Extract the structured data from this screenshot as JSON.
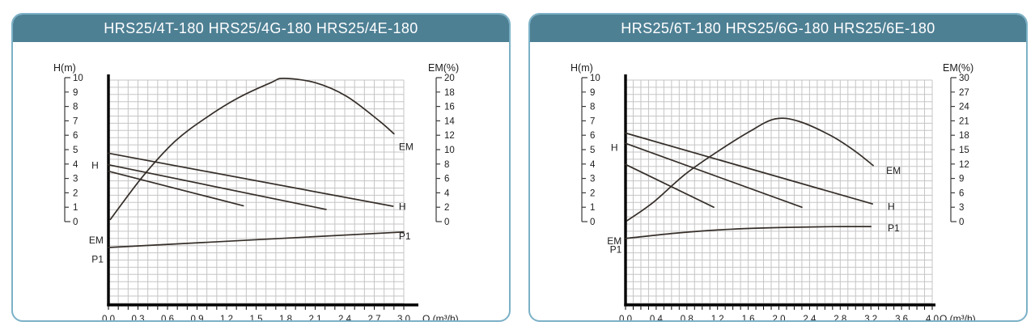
{
  "colors": {
    "header_bg": "#4e8094",
    "panel_border": "#7cb1c7",
    "title_text": "#ffffff",
    "grid": "#c5c5c5",
    "axis": "#000000",
    "curve": "#352e29",
    "scale": "#3a3a3a",
    "tick_text": "#1c1c1c"
  },
  "chart_data": [
    {
      "type": "line",
      "title": "HRS25/4T-180 HRS25/4G-180 HRS25/4E-180",
      "xlabel": "Q (m³/h)",
      "grid": true,
      "x_axis": {
        "min": 0,
        "max": 3.0,
        "minor_step": 0.1,
        "tick_labels": [
          "0.0",
          "0.3",
          "0.6",
          "0.9",
          "1.2",
          "1.5",
          "1.8",
          "2.1",
          "2.4",
          "2.7",
          "3.0"
        ]
      },
      "left_axis": {
        "label": "H(m)",
        "min": 0,
        "max": 10,
        "ticks": [
          "10",
          "9",
          "8",
          "7",
          "6",
          "5",
          "4",
          "3",
          "2",
          "1",
          "0"
        ]
      },
      "right_axis": {
        "label": "EM(%)",
        "min": 0,
        "max": 20,
        "ticks": [
          "20",
          "18",
          "16",
          "14",
          "12",
          "10",
          "8",
          "6",
          "4",
          "2",
          "0"
        ]
      },
      "series": [
        {
          "name": "EM",
          "axis": "right",
          "points": [
            [
              0.02,
              0.3
            ],
            [
              0.35,
              6.3
            ],
            [
              0.68,
              11.2
            ],
            [
              1.0,
              14.5
            ],
            [
              1.32,
              17.2
            ],
            [
              1.65,
              19.3
            ],
            [
              1.78,
              19.9
            ],
            [
              2.1,
              19.3
            ],
            [
              2.42,
              17.4
            ],
            [
              2.75,
              14.0
            ],
            [
              2.9,
              12.2
            ]
          ]
        },
        {
          "name": "H-speed3",
          "axis": "left",
          "points": [
            [
              0,
              4.75
            ],
            [
              2.89,
              1.07
            ]
          ]
        },
        {
          "name": "H-speed2",
          "axis": "left",
          "points": [
            [
              0,
              3.95
            ],
            [
              2.21,
              0.85
            ]
          ]
        },
        {
          "name": "H-speed1",
          "axis": "left",
          "points": [
            [
              0,
              3.5
            ],
            [
              1.37,
              1.1
            ]
          ]
        },
        {
          "name": "P1",
          "axis": "left",
          "points": [
            [
              0,
              -1.8
            ],
            [
              3.0,
              -0.72
            ]
          ]
        }
      ],
      "annotations": [
        {
          "text": "H",
          "axis": "left",
          "q": -0.1,
          "v": 3.9,
          "anchor": "end"
        },
        {
          "text": "EM",
          "axis": "left",
          "q": -0.05,
          "v": -1.3,
          "anchor": "end"
        },
        {
          "text": "P1",
          "axis": "left",
          "q": -0.05,
          "v": -2.6,
          "anchor": "end"
        },
        {
          "text": "EM",
          "axis": "right",
          "q": 2.95,
          "v": 10.4,
          "anchor": "start"
        },
        {
          "text": "H",
          "axis": "left",
          "q": 2.95,
          "v": 1.05,
          "anchor": "start"
        },
        {
          "text": "P1",
          "axis": "left",
          "q": 2.95,
          "v": -1.0,
          "anchor": "start"
        }
      ]
    },
    {
      "type": "line",
      "title": "HRS25/6T-180 HRS25/6G-180 HRS25/6E-180",
      "xlabel": "Q (m³/h)",
      "grid": true,
      "x_axis": {
        "min": 0,
        "max": 4.0,
        "minor_step": 0.1,
        "tick_labels": [
          "0.0",
          "0.4",
          "0.8",
          "1.2",
          "1.6",
          "2.0",
          "2.4",
          "2.8",
          "3.2",
          "3.6",
          "4.0"
        ]
      },
      "left_axis": {
        "label": "H(m)",
        "min": 0,
        "max": 10,
        "ticks": [
          "10",
          "9",
          "8",
          "7",
          "6",
          "5",
          "4",
          "3",
          "2",
          "1",
          "0"
        ]
      },
      "right_axis": {
        "label": "EM(%)",
        "min": 0,
        "max": 30,
        "ticks": [
          "30",
          "27",
          "24",
          "21",
          "18",
          "15",
          "12",
          "9",
          "6",
          "3",
          "0"
        ]
      },
      "series": [
        {
          "name": "EM",
          "axis": "right",
          "points": [
            [
              0.02,
              0.2
            ],
            [
              0.36,
              4.0
            ],
            [
              0.78,
              9.9
            ],
            [
              1.2,
              14.6
            ],
            [
              1.62,
              18.8
            ],
            [
              1.95,
              21.4
            ],
            [
              2.26,
              20.9
            ],
            [
              2.68,
              17.9
            ],
            [
              3.0,
              14.6
            ],
            [
              3.23,
              11.7
            ]
          ]
        },
        {
          "name": "H-speed3",
          "axis": "left",
          "points": [
            [
              0,
              6.15
            ],
            [
              3.22,
              1.23
            ]
          ]
        },
        {
          "name": "H-speed2",
          "axis": "left",
          "points": [
            [
              0,
              5.44
            ],
            [
              2.3,
              1.0
            ]
          ]
        },
        {
          "name": "H-speed1",
          "axis": "left",
          "points": [
            [
              0,
              3.97
            ],
            [
              1.15,
              1.0
            ]
          ]
        },
        {
          "name": "P1",
          "axis": "left",
          "points": [
            [
              0,
              -1.17
            ],
            [
              0.7,
              -0.78
            ],
            [
              1.4,
              -0.52
            ],
            [
              2.1,
              -0.4
            ],
            [
              2.7,
              -0.35
            ],
            [
              3.2,
              -0.34
            ]
          ]
        }
      ],
      "annotations": [
        {
          "text": "H",
          "axis": "left",
          "q": -0.1,
          "v": 5.15,
          "anchor": "end"
        },
        {
          "text": "EM",
          "axis": "left",
          "q": -0.05,
          "v": -1.35,
          "anchor": "end"
        },
        {
          "text": "P1",
          "axis": "left",
          "q": -0.05,
          "v": -1.95,
          "anchor": "end"
        },
        {
          "text": "EM",
          "axis": "right",
          "q": 3.4,
          "v": 10.6,
          "anchor": "start"
        },
        {
          "text": "H",
          "axis": "left",
          "q": 3.42,
          "v": 1.05,
          "anchor": "start"
        },
        {
          "text": "P1",
          "axis": "left",
          "q": 3.42,
          "v": -0.45,
          "anchor": "start"
        }
      ]
    }
  ]
}
